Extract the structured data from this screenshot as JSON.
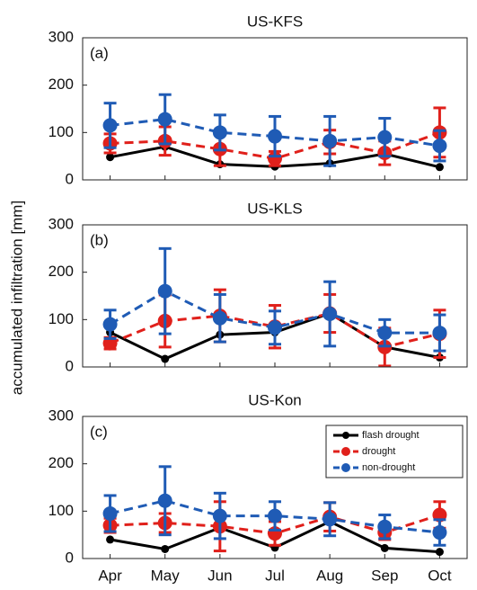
{
  "ylabel": "accumulated infiltration [mm]",
  "chart_data": [
    {
      "type": "line",
      "title": "US-KFS",
      "annotation": "(a)",
      "ylim": [
        0,
        300
      ],
      "yticks": [
        0,
        100,
        200,
        300
      ],
      "series": [
        {
          "color": "#000000",
          "style": "solid",
          "values": [
            48,
            70,
            33,
            28,
            35,
            55,
            27
          ]
        },
        {
          "color": "#e0201b",
          "style": "dashed",
          "values": [
            77,
            82,
            65,
            45,
            80,
            57,
            100
          ],
          "errors": [
            20,
            30,
            35,
            15,
            25,
            25,
            52
          ]
        },
        {
          "color": "#1f5bb5",
          "style": "dashed",
          "values": [
            115,
            128,
            100,
            92,
            82,
            90,
            72
          ],
          "errors": [
            47,
            52,
            37,
            42,
            52,
            40,
            32
          ]
        }
      ]
    },
    {
      "type": "line",
      "title": "US-KLS",
      "annotation": "(b)",
      "ylim": [
        0,
        300
      ],
      "yticks": [
        0,
        100,
        200,
        300
      ],
      "series": [
        {
          "color": "#000000",
          "style": "solid",
          "values": [
            73,
            17,
            68,
            73,
            113,
            42,
            20
          ]
        },
        {
          "color": "#e0201b",
          "style": "dashed",
          "values": [
            50,
            97,
            108,
            85,
            113,
            42,
            70
          ],
          "errors": [
            12,
            55,
            55,
            45,
            40,
            40,
            50
          ]
        },
        {
          "color": "#1f5bb5",
          "style": "dashed",
          "values": [
            90,
            160,
            103,
            83,
            112,
            72,
            72
          ],
          "errors": [
            30,
            90,
            50,
            35,
            68,
            28,
            38
          ]
        }
      ]
    },
    {
      "type": "line",
      "title": "US-Kon",
      "annotation": "(c)",
      "ylim": [
        0,
        300
      ],
      "yticks": [
        0,
        100,
        200,
        300
      ],
      "categories": [
        "Apr",
        "May",
        "Jun",
        "Jul",
        "Aug",
        "Sep",
        "Oct"
      ],
      "legend": "upper right",
      "series": [
        {
          "name": "flash drought",
          "color": "#000000",
          "style": "solid",
          "values": [
            40,
            20,
            65,
            23,
            78,
            22,
            14
          ]
        },
        {
          "name": "drought",
          "color": "#e0201b",
          "style": "dashed",
          "values": [
            70,
            75,
            68,
            53,
            88,
            55,
            92
          ],
          "errors": [
            15,
            20,
            52,
            25,
            30,
            15,
            28
          ]
        },
        {
          "name": "non-drought",
          "color": "#1f5bb5",
          "style": "dashed",
          "values": [
            95,
            122,
            90,
            90,
            83,
            67,
            55
          ],
          "errors": [
            38,
            72,
            48,
            30,
            35,
            25,
            27
          ]
        }
      ]
    }
  ]
}
